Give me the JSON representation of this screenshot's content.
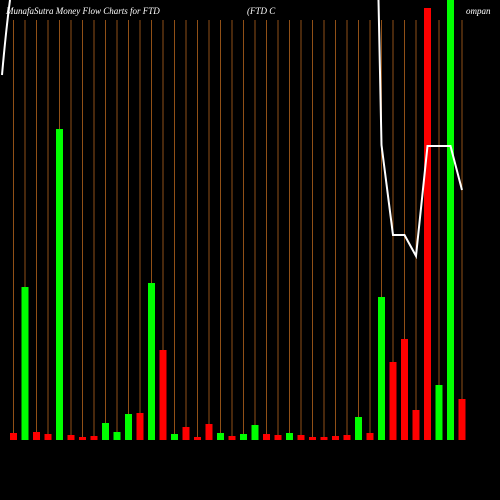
{
  "chart_data": {
    "type": "bar",
    "title": "MunafaSutra  Money Flow  Charts for FTD",
    "subtitle_parts": [
      "(FTD C",
      "ompan"
    ],
    "categories": [
      null,
      null,
      null,
      null,
      null,
      null,
      null,
      null,
      null,
      null,
      null,
      null,
      null,
      null,
      null,
      null,
      null,
      null,
      null,
      null,
      null,
      null,
      null,
      null,
      null,
      null,
      null,
      null,
      null,
      null,
      null,
      null,
      null,
      null,
      null,
      null,
      null,
      null,
      null,
      null
    ],
    "values": [
      7,
      153,
      8,
      6,
      311,
      5,
      3,
      4,
      17,
      8,
      26,
      27,
      157,
      90,
      6,
      13,
      3,
      16,
      7,
      4,
      6,
      15,
      6,
      5,
      7,
      5,
      3,
      3,
      4,
      5,
      23,
      7,
      143,
      78,
      101,
      30,
      432,
      55,
      500,
      41
    ],
    "colors": [
      "#ff0000",
      "#00ff00",
      "#ff0000",
      "#ff0000",
      "#00ff00",
      "#ff0000",
      "#ff0000",
      "#ff0000",
      "#00ff00",
      "#00ff00",
      "#00ff00",
      "#ff0000",
      "#00ff00",
      "#ff0000",
      "#00ff00",
      "#ff0000",
      "#ff0000",
      "#ff0000",
      "#00ff00",
      "#ff0000",
      "#00ff00",
      "#00ff00",
      "#ff0000",
      "#ff0000",
      "#00ff00",
      "#ff0000",
      "#ff0000",
      "#ff0000",
      "#ff0000",
      "#ff0000",
      "#00ff00",
      "#ff0000",
      "#00ff00",
      "#ff0000",
      "#ff0000",
      "#ff0000",
      "#ff0000",
      "#00ff00",
      "#00ff00",
      "#ff0000"
    ],
    "line": {
      "color": "#ffffff",
      "values": [
        null,
        null,
        null,
        null,
        null,
        null,
        null,
        null,
        null,
        null,
        null,
        null,
        null,
        null,
        null,
        null,
        null,
        null,
        null,
        null,
        null,
        null,
        null,
        null,
        null,
        null,
        null,
        null,
        null,
        null,
        null,
        null,
        295,
        205,
        205,
        184,
        294,
        294,
        294,
        250
      ]
    },
    "grid_color": "#b5651d"
  }
}
